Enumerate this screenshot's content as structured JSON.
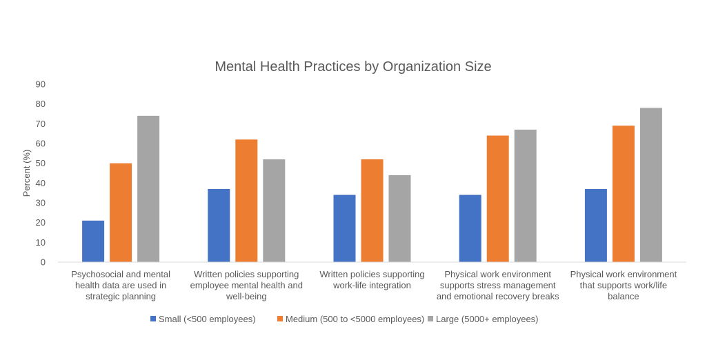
{
  "chart_data": {
    "type": "bar",
    "title": "Mental Health Practices by Organization Size",
    "xlabel": "",
    "ylabel": "Percent (%)",
    "ylim": [
      0,
      90
    ],
    "yticks": [
      0,
      10,
      20,
      30,
      40,
      50,
      60,
      70,
      80,
      90
    ],
    "grid": false,
    "legend_position": "bottom",
    "categories": [
      [
        "Psychosocial and mental",
        "health data are used in",
        "strategic planning"
      ],
      [
        "Written policies supporting",
        "employee mental health and",
        "well-being"
      ],
      [
        "Written policies supporting",
        "work-life integration"
      ],
      [
        "Physical work environment",
        "supports stress management",
        "and emotional recovery breaks"
      ],
      [
        "Physical work environment",
        "that supports work/life",
        "balance"
      ]
    ],
    "series": [
      {
        "name": "Small (<500 employees)",
        "color": "#4472C4",
        "values": [
          21,
          37,
          34,
          34,
          37
        ]
      },
      {
        "name": "Medium (500 to <5000 employees)",
        "color": "#ED7D31",
        "values": [
          50,
          62,
          52,
          64,
          69
        ]
      },
      {
        "name": "Large (5000+ employees)",
        "color": "#A5A5A5",
        "values": [
          74,
          52,
          44,
          67,
          78
        ]
      }
    ]
  }
}
